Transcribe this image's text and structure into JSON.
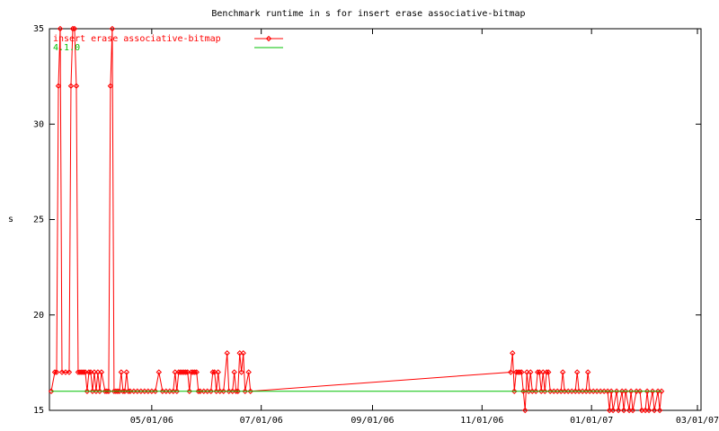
{
  "chart_data": {
    "type": "line",
    "title": "Benchmark runtime in s for insert erase associative-bitmap",
    "ylabel": "s",
    "xlim": [
      "03/05/06",
      "03/03/07"
    ],
    "xticks": [
      "05/01/06",
      "07/01/06",
      "09/01/06",
      "11/01/06",
      "01/01/07",
      "03/01/07"
    ],
    "ylim": [
      15,
      35
    ],
    "yticks": [
      15,
      20,
      25,
      30,
      35
    ],
    "grid": false,
    "legend": "top-left",
    "series": [
      {
        "name": "insert erase associative-bitmap",
        "color": "#ff0000",
        "markers": true,
        "x": [
          "03/06/06",
          "03/08/06",
          "03/09/06",
          "03/10/06",
          "03/11/06",
          "03/12/06",
          "03/14/06",
          "03/16/06",
          "03/17/06",
          "03/18/06",
          "03/19/06",
          "03/20/06",
          "03/21/06",
          "03/22/06",
          "03/23/06",
          "03/24/06",
          "03/25/06",
          "03/26/06",
          "03/27/06",
          "03/28/06",
          "03/29/06",
          "03/30/06",
          "03/31/06",
          "04/01/06",
          "04/02/06",
          "04/03/06",
          "04/05/06",
          "04/06/06",
          "04/07/06",
          "04/08/06",
          "04/09/06",
          "04/10/06",
          "04/11/06",
          "04/12/06",
          "04/13/06",
          "04/14/06",
          "04/15/06",
          "04/16/06",
          "04/17/06",
          "04/18/06",
          "04/19/06",
          "04/21/06",
          "04/23/06",
          "04/25/06",
          "04/27/06",
          "04/29/06",
          "05/01/06",
          "05/03/06",
          "05/05/06",
          "05/07/06",
          "05/09/06",
          "05/11/06",
          "05/13/06",
          "05/14/06",
          "05/15/06",
          "05/16/06",
          "05/17/06",
          "05/18/06",
          "05/19/06",
          "05/20/06",
          "05/21/06",
          "05/22/06",
          "05/23/06",
          "05/24/06",
          "05/25/06",
          "05/26/06",
          "05/27/06",
          "05/28/06",
          "05/30/06",
          "06/01/06",
          "06/03/06",
          "06/04/06",
          "06/05/06",
          "06/06/06",
          "06/07/06",
          "06/08/06",
          "06/10/06",
          "06/12/06",
          "06/13/06",
          "06/15/06",
          "06/16/06",
          "06/17/06",
          "06/18/06",
          "06/19/06",
          "06/20/06",
          "06/21/06",
          "06/22/06",
          "06/24/06",
          "06/25/06",
          "11/17/06",
          "11/18/06",
          "11/19/06",
          "11/20/06",
          "11/21/06",
          "11/22/06",
          "11/23/06",
          "11/24/06",
          "11/25/06",
          "11/26/06",
          "11/27/06",
          "11/28/06",
          "11/29/06",
          "12/01/06",
          "12/02/06",
          "12/03/06",
          "12/04/06",
          "12/05/06",
          "12/06/06",
          "12/07/06",
          "12/08/06",
          "12/09/06",
          "12/11/06",
          "12/13/06",
          "12/15/06",
          "12/16/06",
          "12/17/06",
          "12/19/06",
          "12/21/06",
          "12/23/06",
          "12/24/06",
          "12/25/06",
          "12/27/06",
          "12/29/06",
          "12/30/06",
          "12/31/06",
          "01/02/07",
          "01/04/07",
          "01/06/07",
          "01/08/07",
          "01/10/07",
          "01/11/07",
          "01/12/07",
          "01/13/07",
          "01/15/07",
          "01/16/07",
          "01/18/07",
          "01/19/07",
          "01/20/07",
          "01/22/07",
          "01/23/07",
          "01/24/07",
          "01/26/07",
          "01/28/07",
          "01/29/07",
          "01/31/07",
          "02/01/07",
          "02/02/07",
          "02/04/07",
          "02/05/07",
          "02/07/07",
          "02/08/07",
          "02/09/07"
        ],
        "values": [
          16,
          17,
          17,
          32,
          35,
          17,
          17,
          17,
          32,
          35,
          35,
          32,
          17,
          17,
          17,
          17,
          17,
          16,
          17,
          17,
          16,
          17,
          16,
          17,
          16,
          17,
          16,
          16,
          16,
          32,
          35,
          16,
          16,
          16,
          16,
          17,
          16,
          16,
          17,
          16,
          16,
          16,
          16,
          16,
          16,
          16,
          16,
          16,
          17,
          16,
          16,
          16,
          16,
          17,
          16,
          17,
          17,
          17,
          17,
          17,
          17,
          16,
          17,
          17,
          17,
          17,
          16,
          16,
          16,
          16,
          16,
          17,
          17,
          16,
          17,
          16,
          16,
          18,
          16,
          16,
          17,
          16,
          16,
          18,
          17,
          18,
          16,
          17,
          16,
          17,
          18,
          16,
          17,
          17,
          17,
          17,
          16,
          15,
          17,
          16,
          17,
          16,
          16,
          17,
          17,
          16,
          17,
          16,
          17,
          17,
          16,
          16,
          16,
          16,
          17,
          16,
          16,
          16,
          16,
          17,
          16,
          16,
          16,
          17,
          16,
          16,
          16,
          16,
          16,
          16,
          15,
          16,
          15,
          16,
          15,
          16,
          15,
          16,
          15,
          16,
          15,
          16,
          16,
          15,
          15,
          16,
          15,
          16,
          15,
          16,
          15,
          16
        ]
      },
      {
        "name": "4.1.0",
        "color": "#00c000",
        "markers": false,
        "x": [
          "03/06/06",
          "02/09/07"
        ],
        "values": [
          16,
          16
        ]
      }
    ]
  }
}
